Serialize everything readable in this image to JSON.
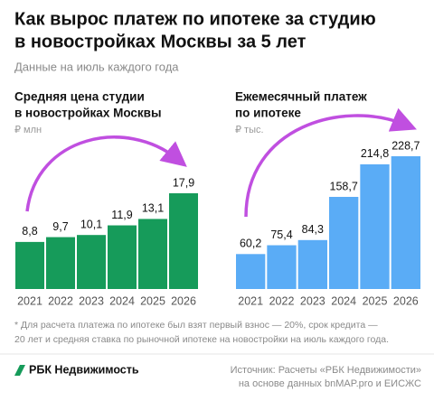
{
  "title": [
    "Как вырос платеж по ипотеке за студию",
    "в новостройках Москвы за 5 лет"
  ],
  "subtitle": "Данные на июль каждого года",
  "chart_data": [
    {
      "type": "bar",
      "title": [
        "Средняя цена студии",
        "в новостройках Москвы"
      ],
      "unit": "₽ млн",
      "categories": [
        "2021",
        "2022",
        "2023",
        "2024",
        "2025",
        "2026"
      ],
      "values": [
        8.8,
        9.7,
        10.1,
        11.9,
        13.1,
        17.9
      ],
      "value_labels": [
        "8,8",
        "9,7",
        "10,1",
        "11,9",
        "13,1",
        "17,9"
      ],
      "color": "#169b5a"
    },
    {
      "type": "bar",
      "title": [
        "Ежемесячный платеж",
        "по ипотеке"
      ],
      "unit": "₽ тыс.",
      "categories": [
        "2021",
        "2022",
        "2023",
        "2024",
        "2025",
        "2026"
      ],
      "values": [
        60.2,
        75.4,
        84.3,
        158.7,
        214.8,
        228.7
      ],
      "value_labels": [
        "60,2",
        "75,4",
        "84,3",
        "158,7",
        "214,8",
        "228,7"
      ],
      "color": "#5aacf6"
    }
  ],
  "footnote": [
    "* Для расчета платежа по ипотеке был взят первый взнос — 20%, срок кредита —",
    "20 лет и средняя ставка по рыночной ипотеке на новостройки на июль каждого года."
  ],
  "logo": "РБК Недвижимость",
  "source": [
    "Источник: Расчеты «РБК Недвижимости»",
    "на основе данных bnMAP.pro и ЕИСЖС"
  ]
}
